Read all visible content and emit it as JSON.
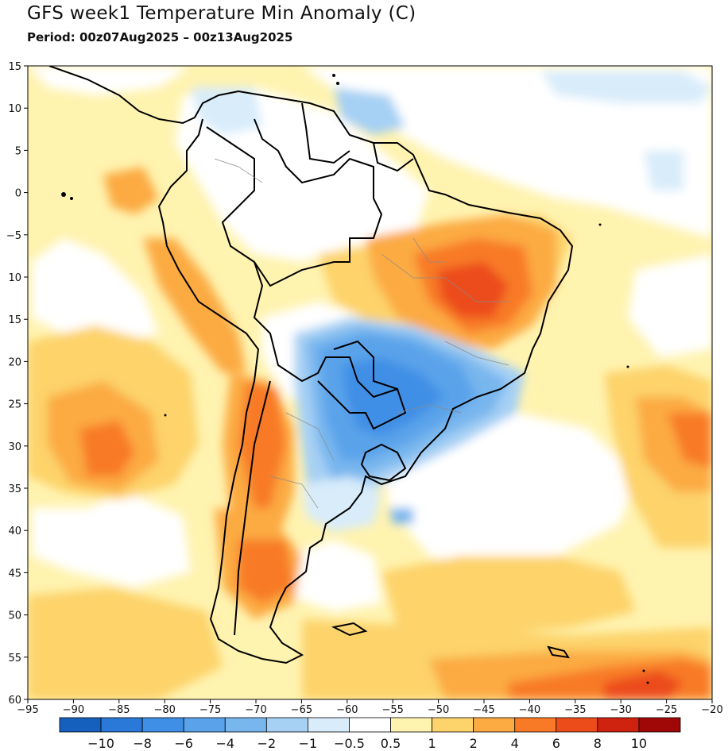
{
  "header": {
    "title": "GFS week1 Temperature Min Anomaly (C)",
    "period": "Period: 00z07Aug2025 – 00z13Aug2025"
  },
  "map": {
    "lon_range": [
      -95,
      -20
    ],
    "lat_range": [
      -60,
      15
    ],
    "lon_ticks": [
      "-95",
      "-90",
      "-85",
      "-80",
      "-75",
      "-70",
      "-65",
      "-60",
      "-55",
      "-50",
      "-45",
      "-40",
      "-35",
      "-30",
      "-25",
      "-20"
    ],
    "lat_ticks": [
      "15",
      "10",
      "5",
      "0",
      "-5",
      "10",
      "15",
      "20",
      "25",
      "30",
      "35",
      "40",
      "45",
      "50",
      "55",
      "60"
    ]
  },
  "colorbar": {
    "colors": [
      "#1560bd",
      "#2a78d8",
      "#3f8fe6",
      "#5aa3ea",
      "#78b6ee",
      "#a6d0f4",
      "#d8ecfa",
      "#ffffff",
      "#fff3b0",
      "#fdd36b",
      "#fcaa42",
      "#f87a26",
      "#ec4c1a",
      "#cf220f",
      "#a00808"
    ],
    "labels": [
      "-10",
      "-8",
      "-6",
      "-4",
      "-2",
      "-1",
      "-0.5",
      "0.5",
      "1",
      "2",
      "4",
      "6",
      "8",
      "10"
    ]
  }
}
